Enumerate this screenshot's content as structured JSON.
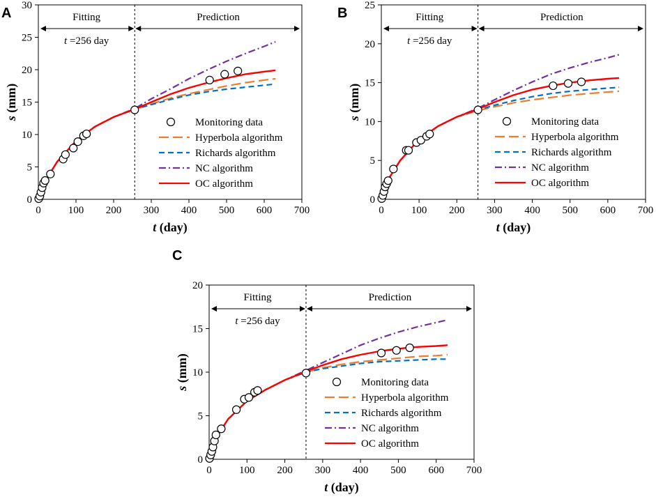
{
  "chart_data": [
    {
      "panel_label": "A",
      "type": "line",
      "xlabel_var": "t",
      "xlabel_unit": " (day)",
      "ylabel_var": "s",
      "ylabel_unit": " (mm)",
      "xlim": [
        0,
        700
      ],
      "ylim": [
        0,
        30
      ],
      "xticks": [
        0,
        100,
        200,
        300,
        400,
        500,
        600,
        700
      ],
      "yticks": [
        0,
        5,
        10,
        15,
        20,
        25,
        30
      ],
      "split_t": 256,
      "fitting_label": "Fitting",
      "prediction_label": "Prediction",
      "split_label_var": "t",
      "split_label_rest": " =256 day",
      "monitoring": {
        "name": "Monitoring data",
        "x": [
          1,
          4,
          7,
          10,
          14,
          18,
          32,
          66,
          72,
          93,
          105,
          120,
          128,
          256,
          455,
          495,
          530
        ],
        "y": [
          0.1,
          0.5,
          1.1,
          1.8,
          2.5,
          2.9,
          3.9,
          6.2,
          6.9,
          7.9,
          8.9,
          9.8,
          10.1,
          13.8,
          18.4,
          19.3,
          19.8
        ]
      },
      "series": [
        {
          "name": "Hyperbola algorithm",
          "color": "#ed7d31",
          "x": [
            0,
            20,
            50,
            100,
            150,
            200,
            256,
            300,
            350,
            400,
            450,
            500,
            550,
            600,
            630
          ],
          "y": [
            0,
            3.0,
            5.8,
            9.0,
            11.2,
            12.7,
            13.9,
            14.7,
            15.6,
            16.3,
            16.9,
            17.5,
            18.0,
            18.4,
            18.6
          ]
        },
        {
          "name": "Richards algorithm",
          "color": "#0070c0",
          "x": [
            0,
            20,
            50,
            100,
            150,
            200,
            256,
            300,
            350,
            400,
            450,
            500,
            550,
            600,
            630
          ],
          "y": [
            0,
            3.0,
            5.8,
            9.0,
            11.2,
            12.7,
            13.9,
            14.6,
            15.4,
            16.1,
            16.6,
            17.0,
            17.3,
            17.6,
            17.8
          ]
        },
        {
          "name": "NC algorithm",
          "color": "#7030a0",
          "x": [
            0,
            20,
            50,
            100,
            150,
            200,
            256,
            300,
            350,
            400,
            450,
            500,
            550,
            600,
            630
          ],
          "y": [
            0,
            3.0,
            5.8,
            9.0,
            11.2,
            12.7,
            14.0,
            15.5,
            17.0,
            18.6,
            20.0,
            21.3,
            22.5,
            23.6,
            24.3
          ]
        },
        {
          "name": "OC algorithm",
          "color": "#ff0000",
          "x": [
            0,
            20,
            50,
            100,
            150,
            200,
            256,
            300,
            350,
            400,
            450,
            500,
            550,
            600,
            630
          ],
          "y": [
            0,
            3.0,
            5.8,
            9.0,
            11.2,
            12.7,
            13.9,
            15.0,
            16.2,
            17.2,
            18.0,
            18.7,
            19.3,
            19.7,
            19.9
          ]
        }
      ]
    },
    {
      "panel_label": "B",
      "type": "line",
      "xlabel_var": "t",
      "xlabel_unit": " (day)",
      "ylabel_var": "s",
      "ylabel_unit": " (mm)",
      "xlim": [
        0,
        700
      ],
      "ylim": [
        0,
        25
      ],
      "xticks": [
        0,
        100,
        200,
        300,
        400,
        500,
        600,
        700
      ],
      "yticks": [
        0,
        5,
        10,
        15,
        20,
        25
      ],
      "split_t": 256,
      "fitting_label": "Fitting",
      "prediction_label": "Prediction",
      "split_label_var": "t",
      "split_label_rest": " =256 day",
      "monitoring": {
        "name": "Monitoring data",
        "x": [
          1,
          4,
          7,
          10,
          14,
          18,
          32,
          66,
          72,
          93,
          105,
          120,
          128,
          256,
          455,
          495,
          530
        ],
        "y": [
          0.1,
          0.5,
          1.0,
          1.6,
          2.0,
          2.4,
          3.9,
          6.3,
          6.3,
          7.3,
          7.6,
          8.1,
          8.4,
          11.5,
          14.6,
          14.9,
          15.1
        ]
      },
      "series": [
        {
          "name": "Hyperbola algorithm",
          "color": "#ed7d31",
          "x": [
            0,
            20,
            50,
            100,
            150,
            200,
            256,
            300,
            350,
            400,
            450,
            500,
            550,
            600,
            630
          ],
          "y": [
            0,
            2.7,
            5.0,
            7.7,
            9.4,
            10.6,
            11.4,
            11.9,
            12.4,
            12.8,
            13.1,
            13.4,
            13.6,
            13.8,
            13.9
          ]
        },
        {
          "name": "Richards algorithm",
          "color": "#0070c0",
          "x": [
            0,
            20,
            50,
            100,
            150,
            200,
            256,
            300,
            350,
            400,
            450,
            500,
            550,
            600,
            630
          ],
          "y": [
            0,
            2.7,
            5.0,
            7.7,
            9.4,
            10.6,
            11.5,
            12.1,
            12.7,
            13.2,
            13.6,
            13.9,
            14.1,
            14.3,
            14.4
          ]
        },
        {
          "name": "NC algorithm",
          "color": "#7030a0",
          "x": [
            0,
            20,
            50,
            100,
            150,
            200,
            256,
            300,
            350,
            400,
            450,
            500,
            550,
            600,
            630
          ],
          "y": [
            0,
            2.7,
            5.0,
            7.7,
            9.4,
            10.6,
            11.7,
            12.8,
            14.0,
            15.1,
            16.1,
            16.9,
            17.6,
            18.2,
            18.6
          ]
        },
        {
          "name": "OC algorithm",
          "color": "#ff0000",
          "x": [
            0,
            20,
            50,
            100,
            150,
            200,
            256,
            300,
            350,
            400,
            450,
            500,
            550,
            600,
            630
          ],
          "y": [
            0,
            2.7,
            5.0,
            7.7,
            9.4,
            10.6,
            11.6,
            12.5,
            13.4,
            14.1,
            14.6,
            15.0,
            15.3,
            15.5,
            15.6
          ]
        }
      ]
    },
    {
      "panel_label": "C",
      "type": "line",
      "xlabel_var": "t",
      "xlabel_unit": " (day)",
      "ylabel_var": "s",
      "ylabel_unit": " (mm)",
      "xlim": [
        0,
        700
      ],
      "ylim": [
        0,
        20
      ],
      "xticks": [
        0,
        100,
        200,
        300,
        400,
        500,
        600,
        700
      ],
      "yticks": [
        0,
        5,
        10,
        15,
        20
      ],
      "split_t": 256,
      "fitting_label": "Fitting",
      "prediction_label": "Prediction",
      "split_label_var": "t",
      "split_label_rest": " =256 day",
      "monitoring": {
        "name": "Monitoring data",
        "x": [
          1,
          4,
          7,
          10,
          14,
          18,
          32,
          72,
          93,
          105,
          120,
          128,
          256,
          455,
          495,
          530
        ],
        "y": [
          0.1,
          0.5,
          0.9,
          1.4,
          2.1,
          2.8,
          3.5,
          5.7,
          6.9,
          7.1,
          7.7,
          7.9,
          9.9,
          12.2,
          12.5,
          12.8
        ]
      },
      "series": [
        {
          "name": "Hyperbola algorithm",
          "color": "#ed7d31",
          "x": [
            0,
            20,
            50,
            100,
            150,
            200,
            256,
            300,
            350,
            400,
            450,
            500,
            550,
            600,
            630
          ],
          "y": [
            0,
            2.6,
            4.6,
            6.7,
            8.0,
            9.1,
            10.0,
            10.5,
            10.9,
            11.2,
            11.4,
            11.6,
            11.8,
            11.9,
            12.0
          ]
        },
        {
          "name": "Richards algorithm",
          "color": "#0070c0",
          "x": [
            0,
            20,
            50,
            100,
            150,
            200,
            256,
            300,
            350,
            400,
            450,
            500,
            550,
            600,
            630
          ],
          "y": [
            0,
            2.6,
            4.6,
            6.7,
            8.0,
            9.1,
            10.0,
            10.4,
            10.7,
            11.0,
            11.2,
            11.3,
            11.4,
            11.5,
            11.5
          ]
        },
        {
          "name": "NC algorithm",
          "color": "#7030a0",
          "x": [
            0,
            20,
            50,
            100,
            150,
            200,
            256,
            300,
            350,
            400,
            450,
            500,
            550,
            600,
            630
          ],
          "y": [
            0,
            2.6,
            4.6,
            6.7,
            8.0,
            9.1,
            10.2,
            11.1,
            12.1,
            13.1,
            13.9,
            14.6,
            15.2,
            15.7,
            16.0
          ]
        },
        {
          "name": "OC algorithm",
          "color": "#ff0000",
          "x": [
            0,
            20,
            50,
            100,
            150,
            200,
            256,
            300,
            350,
            400,
            450,
            500,
            550,
            600,
            630
          ],
          "y": [
            0,
            2.6,
            4.6,
            6.7,
            8.0,
            9.1,
            10.1,
            10.8,
            11.5,
            12.0,
            12.4,
            12.7,
            12.9,
            13.0,
            13.1
          ]
        }
      ]
    }
  ]
}
